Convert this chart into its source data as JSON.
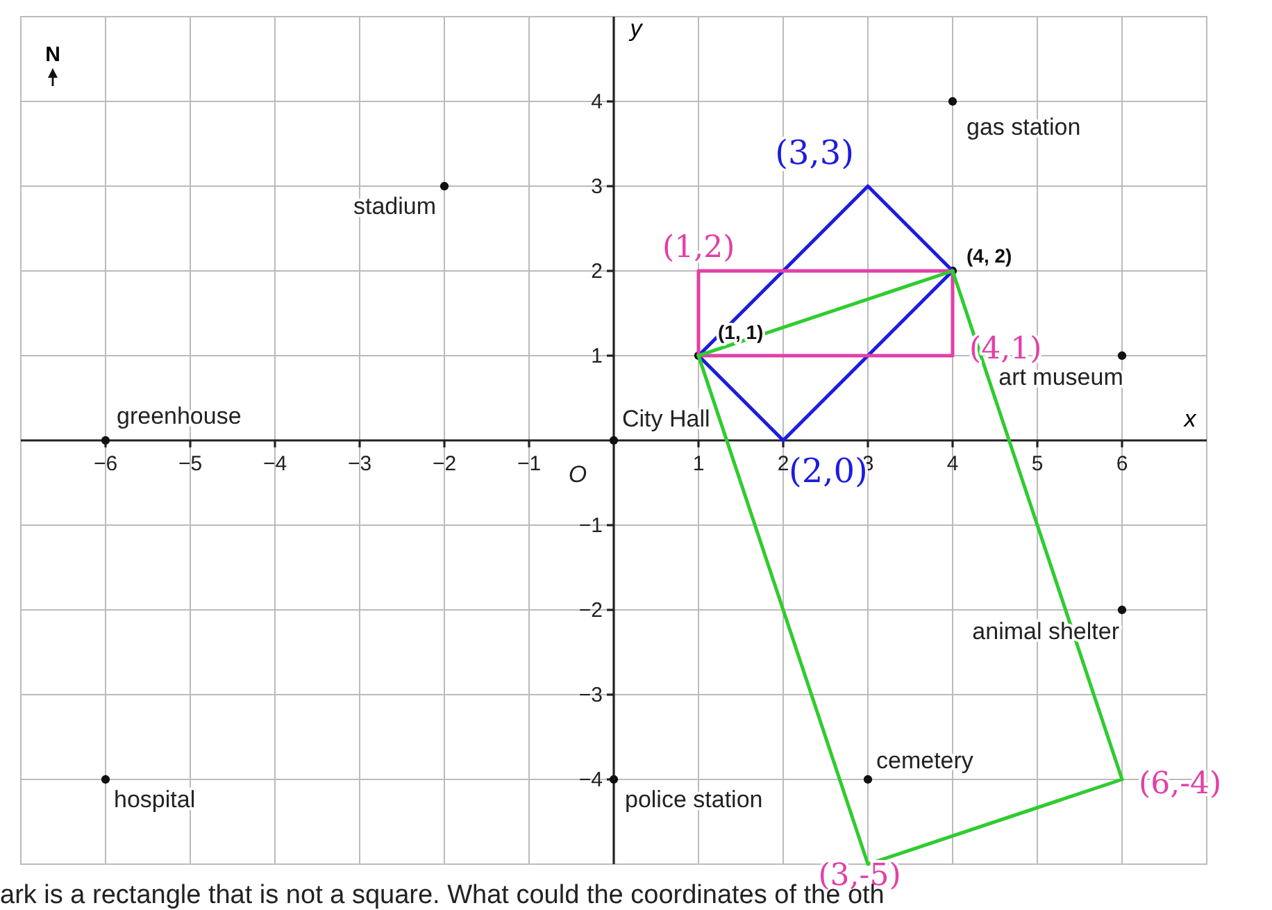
{
  "chart_data": {
    "type": "scatter",
    "xlabel": "x",
    "ylabel": "y",
    "xlim": [
      -7,
      7
    ],
    "ylim": [
      -5,
      5
    ],
    "xticks": [
      -6,
      -5,
      -4,
      -3,
      -2,
      -1,
      1,
      2,
      3,
      4,
      5,
      6
    ],
    "yticks": [
      -4,
      -3,
      -2,
      -1,
      1,
      2,
      3,
      4
    ],
    "grid": true,
    "series": [
      {
        "type": "scatter",
        "color": "#111111",
        "marker": "circle",
        "x": [
          4,
          -2,
          6,
          -6,
          0,
          6,
          3,
          0,
          -6,
          4,
          1
        ],
        "values": [
          4,
          3,
          1,
          0,
          0,
          -2,
          -4,
          -4,
          -4,
          2,
          1
        ]
      },
      {
        "type": "line",
        "color": "#1c1ce0",
        "marker": "none",
        "x": [
          1,
          3,
          4
        ],
        "values": [
          1,
          3,
          2
        ]
      },
      {
        "type": "line",
        "color": "#1c1ce0",
        "marker": "none",
        "x": [
          1,
          2,
          4
        ],
        "values": [
          1,
          0,
          2
        ]
      },
      {
        "type": "line",
        "color": "#e23fa8",
        "marker": "none",
        "x": [
          1,
          1,
          4
        ],
        "values": [
          1,
          2,
          2
        ]
      },
      {
        "type": "line",
        "color": "#e23fa8",
        "marker": "none",
        "x": [
          1,
          4,
          4
        ],
        "values": [
          1,
          1,
          2
        ]
      },
      {
        "type": "line",
        "color": "#2fcc2f",
        "marker": "none",
        "x": [
          1,
          4,
          6
        ],
        "values": [
          1,
          2,
          -4
        ]
      },
      {
        "type": "line",
        "color": "#2fcc2f",
        "marker": "none",
        "x": [
          1,
          3,
          6
        ],
        "values": [
          1,
          -5,
          -4
        ]
      }
    ],
    "annotations": [
      {
        "text": "gas station",
        "x": 4,
        "y": 4
      },
      {
        "text": "stadium",
        "x": -2,
        "y": 3
      },
      {
        "text": "art museum",
        "x": 6,
        "y": 1
      },
      {
        "text": "greenhouse",
        "x": -6,
        "y": 0
      },
      {
        "text": "City Hall",
        "x": 0,
        "y": 0
      },
      {
        "text": "animal shelter",
        "x": 6,
        "y": -2
      },
      {
        "text": "cemetery",
        "x": 3,
        "y": -4
      },
      {
        "text": "police station",
        "x": 0,
        "y": -4
      },
      {
        "text": "hospital",
        "x": -6,
        "y": -4
      },
      {
        "text": "(4, 2)",
        "x": 4,
        "y": 2
      },
      {
        "text": "(1, 1)",
        "x": 1,
        "y": 1
      },
      {
        "text": "(3,3)",
        "x": 3,
        "y": 3
      },
      {
        "text": "(1,2)",
        "x": 1,
        "y": 2
      },
      {
        "text": "(4,1)",
        "x": 4,
        "y": 1
      },
      {
        "text": "(2,0)",
        "x": 2,
        "y": 0
      },
      {
        "text": "(6,-4)",
        "x": 6,
        "y": -4
      },
      {
        "text": "(3,-5)",
        "x": 3,
        "y": -5
      },
      {
        "text": "O",
        "x": 0,
        "y": 0
      },
      "N",
      "ark is a rectangle that is not a square. What could the coordinates of the oth"
    ]
  }
}
